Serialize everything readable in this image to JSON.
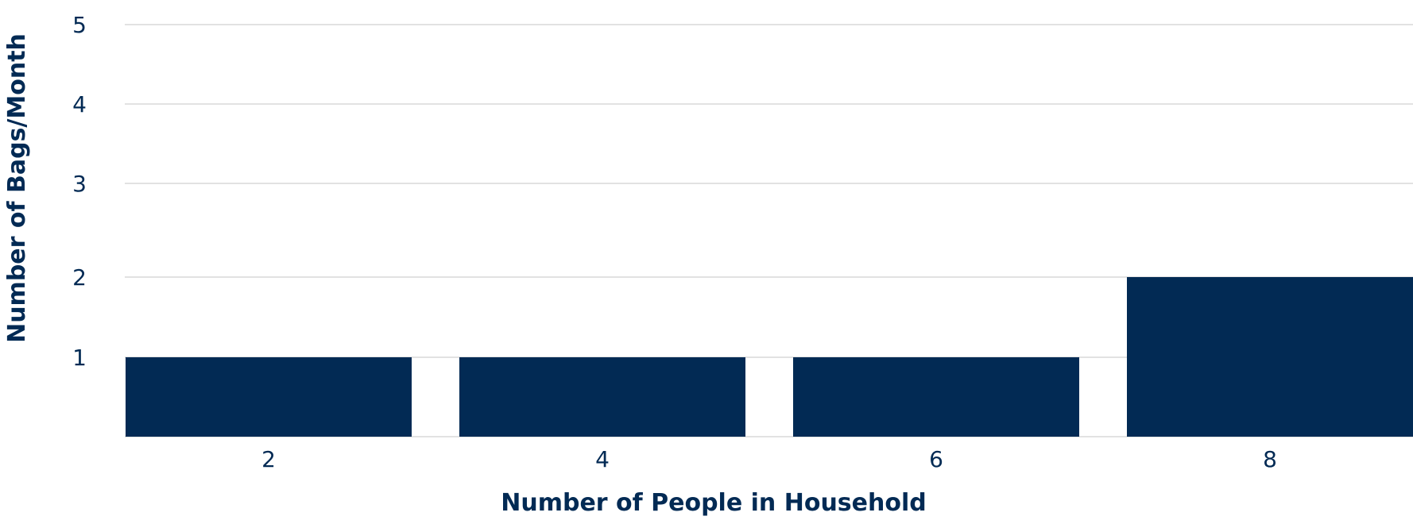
{
  "chart_data": {
    "type": "bar",
    "categories": [
      "2",
      "4",
      "6",
      "8"
    ],
    "values": [
      1,
      1,
      1,
      2
    ],
    "title": "",
    "xlabel": "Number of People in Household",
    "ylabel": "Number of Bags/Month",
    "ylim": [
      0,
      5
    ],
    "yticks": [
      1,
      2,
      3,
      4,
      5
    ],
    "grid": true,
    "bar_color": "#022a54",
    "text_color": "#022a54",
    "grid_color": "#d9d9d9"
  }
}
